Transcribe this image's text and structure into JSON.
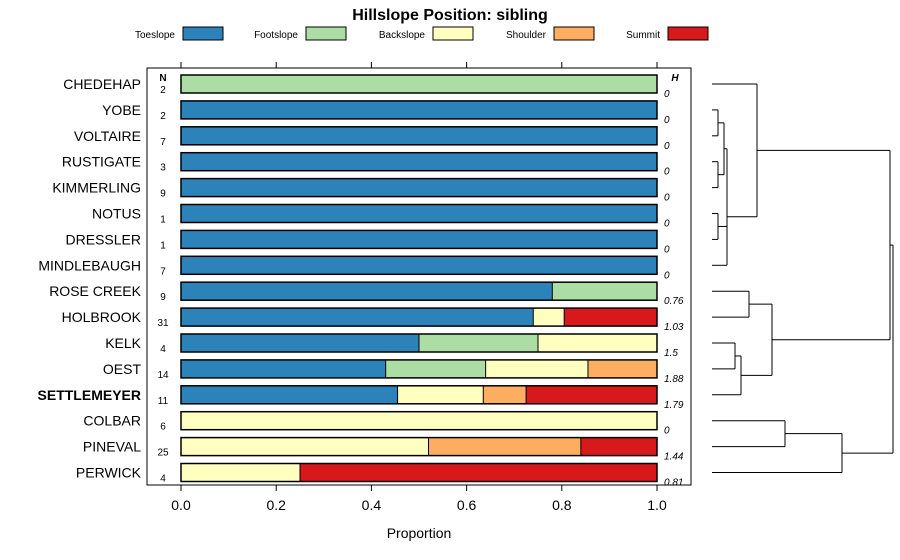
{
  "chart_data": {
    "type": "bar",
    "title": "Hillslope Position: sibling",
    "xlabel": "Proportion",
    "xlim": [
      0,
      1
    ],
    "x_ticks": [
      "0.0",
      "0.2",
      "0.4",
      "0.6",
      "0.8",
      "1.0"
    ],
    "x_tick_values": [
      0,
      0.2,
      0.4,
      0.6,
      0.8,
      1.0
    ],
    "n_header": "N",
    "h_header": "H",
    "legend_placement": "top",
    "series": [
      {
        "name": "Toeslope",
        "color": "#2b83ba"
      },
      {
        "name": "Footslope",
        "color": "#abdda4"
      },
      {
        "name": "Backslope",
        "color": "#ffffbf"
      },
      {
        "name": "Shoulder",
        "color": "#fdae61"
      },
      {
        "name": "Summit",
        "color": "#d7191c"
      }
    ],
    "categories": [
      {
        "label": "CHEDEHAP",
        "n": "2",
        "h": "0",
        "bold": false,
        "values": [
          0,
          1,
          0,
          0,
          0
        ]
      },
      {
        "label": "YOBE",
        "n": "2",
        "h": "0",
        "bold": false,
        "values": [
          1,
          0,
          0,
          0,
          0
        ]
      },
      {
        "label": "VOLTAIRE",
        "n": "7",
        "h": "0",
        "bold": false,
        "values": [
          1,
          0,
          0,
          0,
          0
        ]
      },
      {
        "label": "RUSTIGATE",
        "n": "3",
        "h": "0",
        "bold": false,
        "values": [
          1,
          0,
          0,
          0,
          0
        ]
      },
      {
        "label": "KIMMERLING",
        "n": "9",
        "h": "0",
        "bold": false,
        "values": [
          1,
          0,
          0,
          0,
          0
        ]
      },
      {
        "label": "NOTUS",
        "n": "1",
        "h": "0",
        "bold": false,
        "values": [
          1,
          0,
          0,
          0,
          0
        ]
      },
      {
        "label": "DRESSLER",
        "n": "1",
        "h": "0",
        "bold": false,
        "values": [
          1,
          0,
          0,
          0,
          0
        ]
      },
      {
        "label": "MINDLEBAUGH",
        "n": "7",
        "h": "0",
        "bold": false,
        "values": [
          1,
          0,
          0,
          0,
          0
        ]
      },
      {
        "label": "ROSE CREEK",
        "n": "9",
        "h": "0.76",
        "bold": false,
        "values": [
          0.78,
          0.22,
          0,
          0,
          0
        ]
      },
      {
        "label": "HOLBROOK",
        "n": "31",
        "h": "1.03",
        "bold": false,
        "values": [
          0.74,
          0,
          0.065,
          0,
          0.195
        ]
      },
      {
        "label": "KELK",
        "n": "4",
        "h": "1.5",
        "bold": false,
        "values": [
          0.5,
          0.25,
          0.25,
          0,
          0
        ]
      },
      {
        "label": "OEST",
        "n": "14",
        "h": "1.88",
        "bold": false,
        "values": [
          0.43,
          0.21,
          0.215,
          0.145,
          0
        ]
      },
      {
        "label": "SETTLEMEYER",
        "n": "11",
        "h": "1.79",
        "bold": true,
        "values": [
          0.455,
          0,
          0.18,
          0.09,
          0.275
        ]
      },
      {
        "label": "COLBAR",
        "n": "6",
        "h": "0",
        "bold": false,
        "values": [
          0,
          0,
          1,
          0,
          0
        ]
      },
      {
        "label": "PINEVAL",
        "n": "25",
        "h": "1.44",
        "bold": false,
        "values": [
          0,
          0,
          0.52,
          0.32,
          0.16
        ]
      },
      {
        "label": "PERWICK",
        "n": "4",
        "h": "0.81",
        "bold": false,
        "values": [
          0,
          0,
          0.25,
          0,
          0.75
        ]
      }
    ]
  }
}
